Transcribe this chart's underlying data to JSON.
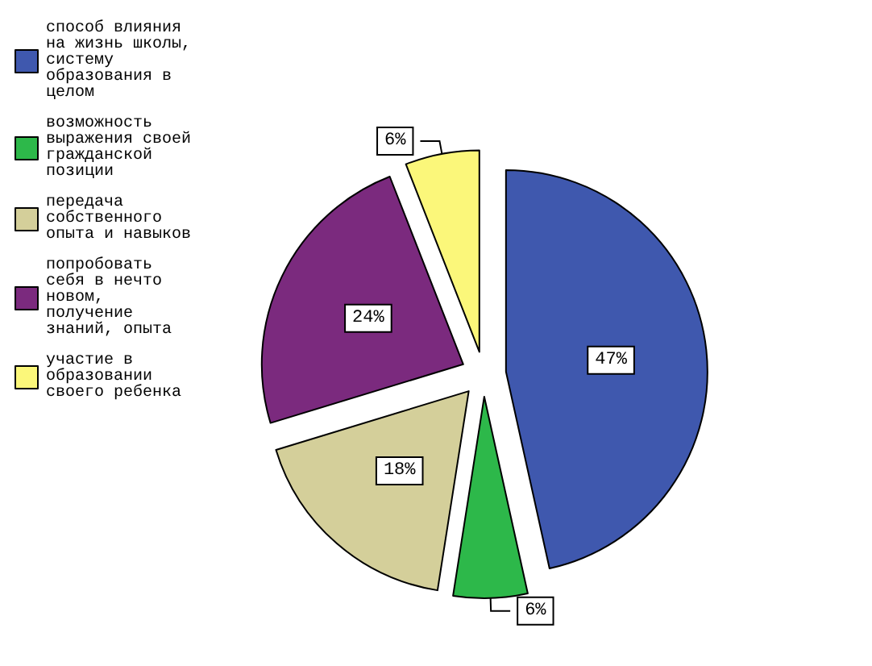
{
  "chart_data": {
    "type": "pie",
    "categories": [
      "способ влияния на жизнь школы, систему образования в целом",
      "возможность выражения своей гражданской позиции",
      "передача собственного опыта и навыков",
      "попробовать себя в нечто новом, получение знаний, опыта",
      "участие в образовании своего ребенка"
    ],
    "values": [
      47,
      6,
      18,
      24,
      6
    ],
    "value_labels": [
      "47%",
      "6%",
      "18%",
      "24%",
      "6%"
    ],
    "colors": [
      "#3f58ae",
      "#2db84a",
      "#d4cf9a",
      "#7b2a7e",
      "#fbf77a"
    ],
    "legend": "top left"
  }
}
